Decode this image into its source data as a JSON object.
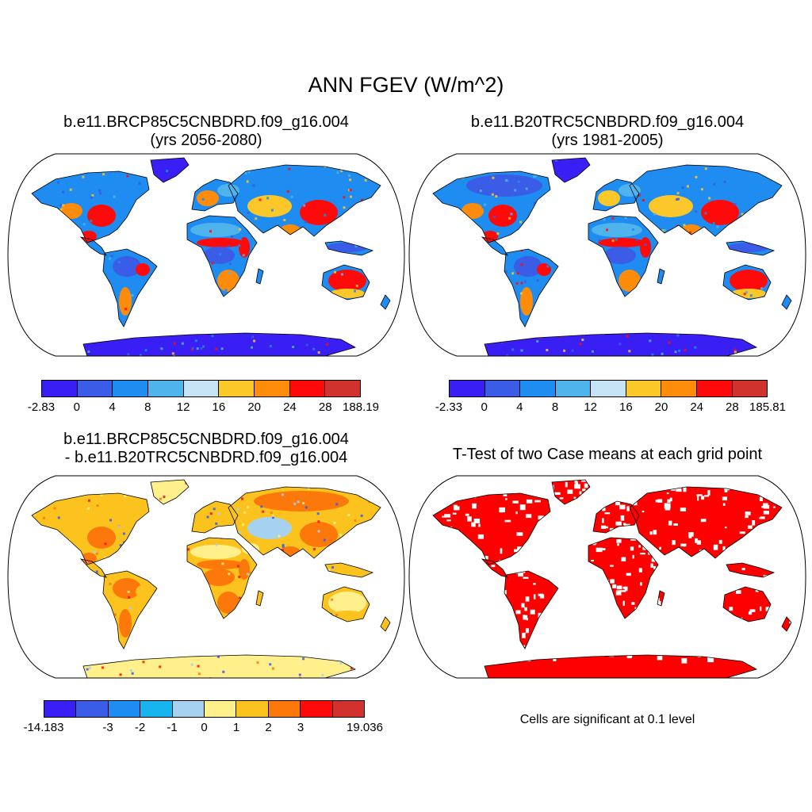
{
  "figure_title": "ANN FGEV (W/m^2)",
  "panels": [
    {
      "title_line1": "b.e11.BRCP85C5CNBDRD.f09_g16.004",
      "title_line2": "(yrs 2056-2080)",
      "colorbar": {
        "colors": [
          "#3a1ff5",
          "#3a5ce6",
          "#1e8cf0",
          "#4fb4ec",
          "#c6e4f6",
          "#fcc728",
          "#fc8c0a",
          "#ff0a0a",
          "#d2322d"
        ],
        "labels": [
          "-2.83",
          "0",
          "4",
          "8",
          "12",
          "16",
          "20",
          "24",
          "28",
          "188.19"
        ]
      }
    },
    {
      "title_line1": "b.e11.B20TRC5CNBDRD.f09_g16.004",
      "title_line2": "(yrs 1981-2005)",
      "colorbar": {
        "colors": [
          "#3a1ff5",
          "#3a5ce6",
          "#1e8cf0",
          "#4fb4ec",
          "#c6e4f6",
          "#fcc728",
          "#fc8c0a",
          "#ff0a0a",
          "#d2322d"
        ],
        "labels": [
          "-2.33",
          "0",
          "4",
          "8",
          "12",
          "16",
          "20",
          "24",
          "28",
          "185.81"
        ]
      }
    },
    {
      "title_line1": "b.e11.BRCP85C5CNBDRD.f09_g16.004",
      "title_line2": "- b.e11.B20TRC5CNBDRD.f09_g16.004",
      "colorbar": {
        "colors": [
          "#3a1ff5",
          "#3a5ce6",
          "#1e8cf0",
          "#18b4f0",
          "#a6d2f0",
          "#fff08c",
          "#fcc31e",
          "#fc780a",
          "#ff0a0a",
          "#d2322d"
        ],
        "labels": [
          "-14.183",
          "",
          "-3",
          "-2",
          "-1",
          "0",
          "1",
          "2",
          "3",
          "",
          "19.036"
        ]
      }
    },
    {
      "title_line1": "T-Test of two Case means at each grid point",
      "note": "Cells are significant at 0.1 level",
      "sig_color": "#ff0000"
    }
  ]
}
